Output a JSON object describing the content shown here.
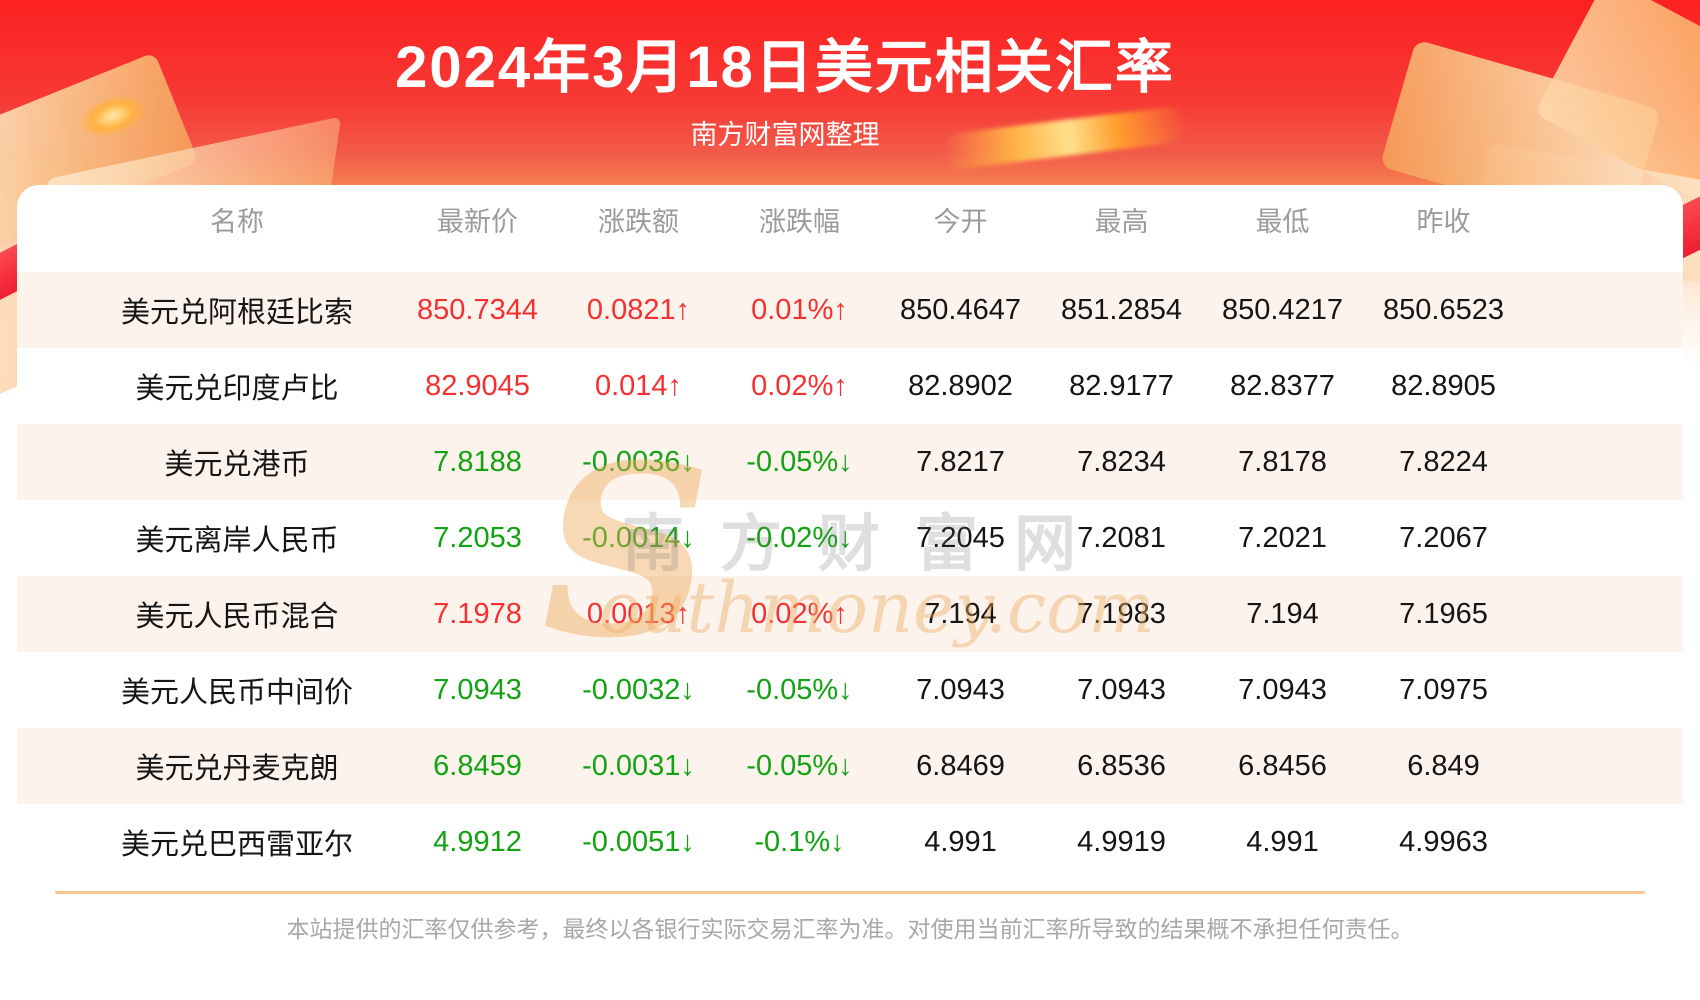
{
  "header": {
    "title": "2024年3月18日美元相关汇率",
    "subtitle": "南方财富网整理"
  },
  "watermark": {
    "initial": "S",
    "chinese": "南方财富网",
    "english": "outhmoney.com"
  },
  "footer": {
    "disclaimer": "本站提供的汇率仅供参考，最终以各银行实际交易汇率为准。对使用当前汇率所导致的结果概不承担任何责任。"
  },
  "colors": {
    "banner_top": "#fb2121",
    "banner_bottom": "#f9ae7d",
    "up": "#f53030",
    "down": "#12a312",
    "row_alt_background": "#fcf3ec",
    "header_text": "#9b9b9b",
    "divider": "#f6c78e"
  },
  "table": {
    "columns": [
      "名称",
      "最新价",
      "涨跌额",
      "涨跌幅",
      "今开",
      "最高",
      "最低",
      "昨收"
    ],
    "arrows": {
      "up": "↑",
      "down": "↓"
    },
    "rows": [
      {
        "name": "美元兑阿根廷比索",
        "last": "850.7344",
        "change": "0.0821",
        "change_pct": "0.01%",
        "dir": "up",
        "open": "850.4647",
        "high": "851.2854",
        "low": "850.4217",
        "prev": "850.6523"
      },
      {
        "name": "美元兑印度卢比",
        "last": "82.9045",
        "change": "0.014",
        "change_pct": "0.02%",
        "dir": "up",
        "open": "82.8902",
        "high": "82.9177",
        "low": "82.8377",
        "prev": "82.8905"
      },
      {
        "name": "美元兑港币",
        "last": "7.8188",
        "change": "-0.0036",
        "change_pct": "-0.05%",
        "dir": "down",
        "open": "7.8217",
        "high": "7.8234",
        "low": "7.8178",
        "prev": "7.8224"
      },
      {
        "name": "美元离岸人民币",
        "last": "7.2053",
        "change": "-0.0014",
        "change_pct": "-0.02%",
        "dir": "down",
        "open": "7.2045",
        "high": "7.2081",
        "low": "7.2021",
        "prev": "7.2067"
      },
      {
        "name": "美元人民币混合",
        "last": "7.1978",
        "change": "0.0013",
        "change_pct": "0.02%",
        "dir": "up",
        "open": "7.194",
        "high": "7.1983",
        "low": "7.194",
        "prev": "7.1965"
      },
      {
        "name": "美元人民币中间价",
        "last": "7.0943",
        "change": "-0.0032",
        "change_pct": "-0.05%",
        "dir": "down",
        "open": "7.0943",
        "high": "7.0943",
        "low": "7.0943",
        "prev": "7.0975"
      },
      {
        "name": "美元兑丹麦克朗",
        "last": "6.8459",
        "change": "-0.0031",
        "change_pct": "-0.05%",
        "dir": "down",
        "open": "6.8469",
        "high": "6.8536",
        "low": "6.8456",
        "prev": "6.849"
      },
      {
        "name": "美元兑巴西雷亚尔",
        "last": "4.9912",
        "change": "-0.0051",
        "change_pct": "-0.1%",
        "dir": "down",
        "open": "4.991",
        "high": "4.9919",
        "low": "4.991",
        "prev": "4.9963"
      }
    ]
  }
}
